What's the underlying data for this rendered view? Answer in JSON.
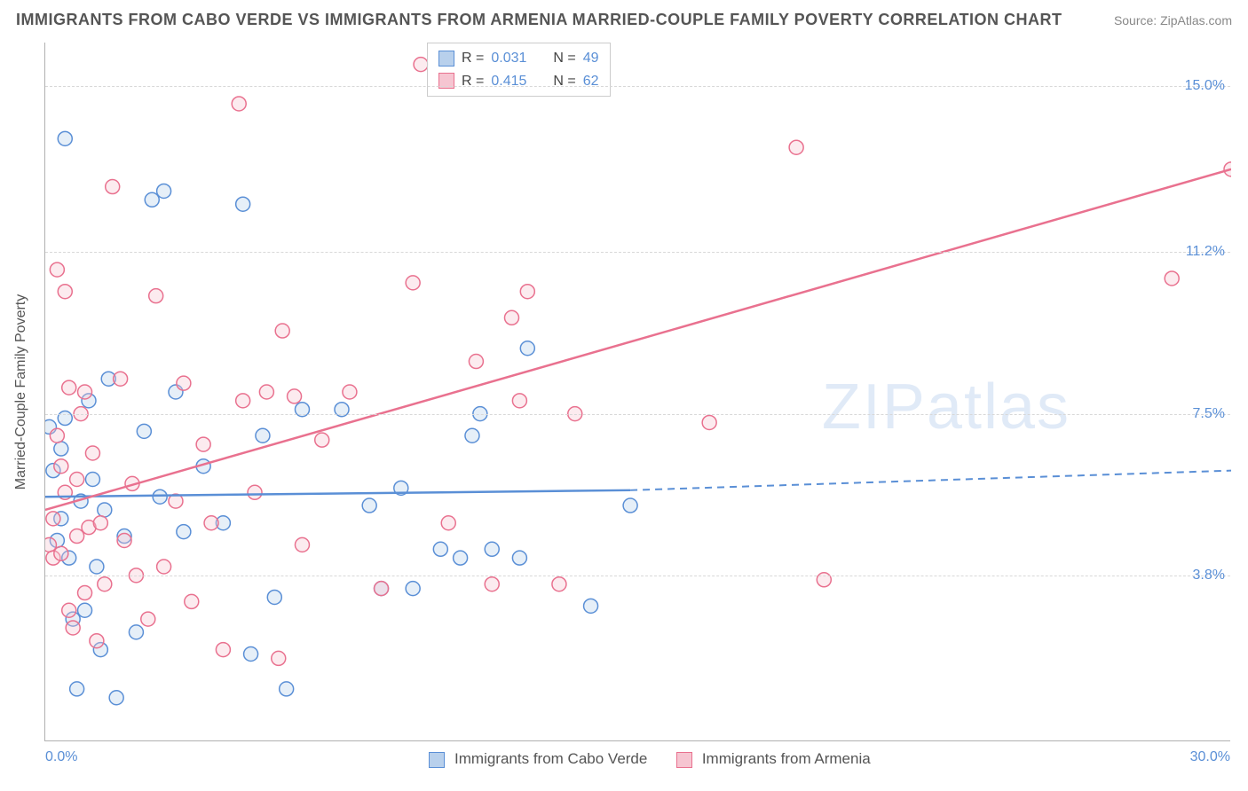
{
  "header": {
    "title": "IMMIGRANTS FROM CABO VERDE VS IMMIGRANTS FROM ARMENIA MARRIED-COUPLE FAMILY POVERTY CORRELATION CHART",
    "source": "Source: ZipAtlas.com"
  },
  "watermark": "ZIPatlas",
  "y_axis_label": "Married-Couple Family Poverty",
  "chart": {
    "type": "scatter",
    "background_color": "#ffffff",
    "grid_color": "#d8d8d8",
    "axis_color": "#b0b0b0",
    "xlim": [
      0,
      30
    ],
    "ylim": [
      0,
      16
    ],
    "x_ticks": [
      {
        "pos": 0,
        "label": "0.0%"
      },
      {
        "pos": 30,
        "label": "30.0%"
      }
    ],
    "y_ticks": [
      {
        "pos": 3.8,
        "label": "3.8%"
      },
      {
        "pos": 7.5,
        "label": "7.5%"
      },
      {
        "pos": 11.2,
        "label": "11.2%"
      },
      {
        "pos": 15.0,
        "label": "15.0%"
      }
    ],
    "marker_radius": 8,
    "marker_stroke_width": 1.5,
    "marker_fill_opacity": 0.35,
    "series": [
      {
        "id": "cabo_verde",
        "label": "Immigrants from Cabo Verde",
        "color": "#5a8fd6",
        "fill": "#b8d0ec",
        "R": "0.031",
        "N": "49",
        "regression": {
          "x1": 0,
          "y1": 5.6,
          "x2": 14.8,
          "y2": 5.75,
          "extend_x": 30,
          "extend_y": 6.2,
          "dash": true
        },
        "points": [
          [
            0.1,
            7.2
          ],
          [
            0.2,
            6.2
          ],
          [
            0.3,
            4.6
          ],
          [
            0.4,
            6.7
          ],
          [
            0.4,
            5.1
          ],
          [
            0.5,
            7.4
          ],
          [
            0.5,
            13.8
          ],
          [
            0.6,
            4.2
          ],
          [
            0.7,
            2.8
          ],
          [
            0.8,
            1.2
          ],
          [
            0.9,
            5.5
          ],
          [
            1.0,
            3.0
          ],
          [
            1.1,
            7.8
          ],
          [
            1.2,
            6.0
          ],
          [
            1.3,
            4.0
          ],
          [
            1.4,
            2.1
          ],
          [
            1.5,
            5.3
          ],
          [
            1.6,
            8.3
          ],
          [
            1.8,
            1.0
          ],
          [
            2.0,
            4.7
          ],
          [
            2.3,
            2.5
          ],
          [
            2.5,
            7.1
          ],
          [
            2.7,
            12.4
          ],
          [
            2.9,
            5.6
          ],
          [
            3.0,
            12.6
          ],
          [
            3.3,
            8.0
          ],
          [
            3.5,
            4.8
          ],
          [
            4.0,
            6.3
          ],
          [
            4.5,
            5.0
          ],
          [
            5.0,
            12.3
          ],
          [
            5.2,
            2.0
          ],
          [
            5.5,
            7.0
          ],
          [
            5.8,
            3.3
          ],
          [
            6.1,
            1.2
          ],
          [
            6.5,
            7.6
          ],
          [
            7.5,
            7.6
          ],
          [
            8.2,
            5.4
          ],
          [
            8.5,
            3.5
          ],
          [
            9.0,
            5.8
          ],
          [
            9.3,
            3.5
          ],
          [
            10.0,
            4.4
          ],
          [
            10.5,
            4.2
          ],
          [
            10.8,
            7.0
          ],
          [
            11.0,
            7.5
          ],
          [
            11.3,
            4.4
          ],
          [
            12.0,
            4.2
          ],
          [
            12.2,
            9.0
          ],
          [
            13.8,
            3.1
          ],
          [
            14.8,
            5.4
          ]
        ]
      },
      {
        "id": "armenia",
        "label": "Immigrants from Armenia",
        "color": "#e9718f",
        "fill": "#f6c5d1",
        "R": "0.415",
        "N": "62",
        "regression": {
          "x1": 0,
          "y1": 5.3,
          "x2": 30,
          "y2": 13.1,
          "dash": false
        },
        "points": [
          [
            0.1,
            4.5
          ],
          [
            0.2,
            5.1
          ],
          [
            0.2,
            4.2
          ],
          [
            0.3,
            10.8
          ],
          [
            0.3,
            7.0
          ],
          [
            0.4,
            4.3
          ],
          [
            0.4,
            6.3
          ],
          [
            0.5,
            5.7
          ],
          [
            0.5,
            10.3
          ],
          [
            0.6,
            3.0
          ],
          [
            0.6,
            8.1
          ],
          [
            0.7,
            2.6
          ],
          [
            0.8,
            6.0
          ],
          [
            0.8,
            4.7
          ],
          [
            0.9,
            7.5
          ],
          [
            1.0,
            3.4
          ],
          [
            1.0,
            8.0
          ],
          [
            1.1,
            4.9
          ],
          [
            1.2,
            6.6
          ],
          [
            1.3,
            2.3
          ],
          [
            1.4,
            5.0
          ],
          [
            1.5,
            3.6
          ],
          [
            1.7,
            12.7
          ],
          [
            1.9,
            8.3
          ],
          [
            2.0,
            4.6
          ],
          [
            2.2,
            5.9
          ],
          [
            2.3,
            3.8
          ],
          [
            2.6,
            2.8
          ],
          [
            2.8,
            10.2
          ],
          [
            3.0,
            4.0
          ],
          [
            3.3,
            5.5
          ],
          [
            3.5,
            8.2
          ],
          [
            3.7,
            3.2
          ],
          [
            4.0,
            6.8
          ],
          [
            4.2,
            5.0
          ],
          [
            4.5,
            2.1
          ],
          [
            4.9,
            14.6
          ],
          [
            5.0,
            7.8
          ],
          [
            5.3,
            5.7
          ],
          [
            5.6,
            8.0
          ],
          [
            5.9,
            1.9
          ],
          [
            6.0,
            9.4
          ],
          [
            6.3,
            7.9
          ],
          [
            6.5,
            4.5
          ],
          [
            7.0,
            6.9
          ],
          [
            7.7,
            8.0
          ],
          [
            8.5,
            3.5
          ],
          [
            9.3,
            10.5
          ],
          [
            9.5,
            15.5
          ],
          [
            10.2,
            5.0
          ],
          [
            10.9,
            8.7
          ],
          [
            11.3,
            3.6
          ],
          [
            11.8,
            9.7
          ],
          [
            12.0,
            7.8
          ],
          [
            12.2,
            10.3
          ],
          [
            13.0,
            3.6
          ],
          [
            13.4,
            7.5
          ],
          [
            16.8,
            7.3
          ],
          [
            19.0,
            13.6
          ],
          [
            19.7,
            3.7
          ],
          [
            28.5,
            10.6
          ],
          [
            30.0,
            13.1
          ]
        ]
      }
    ]
  },
  "legend_stats": {
    "r_label": "R =",
    "n_label": "N ="
  }
}
